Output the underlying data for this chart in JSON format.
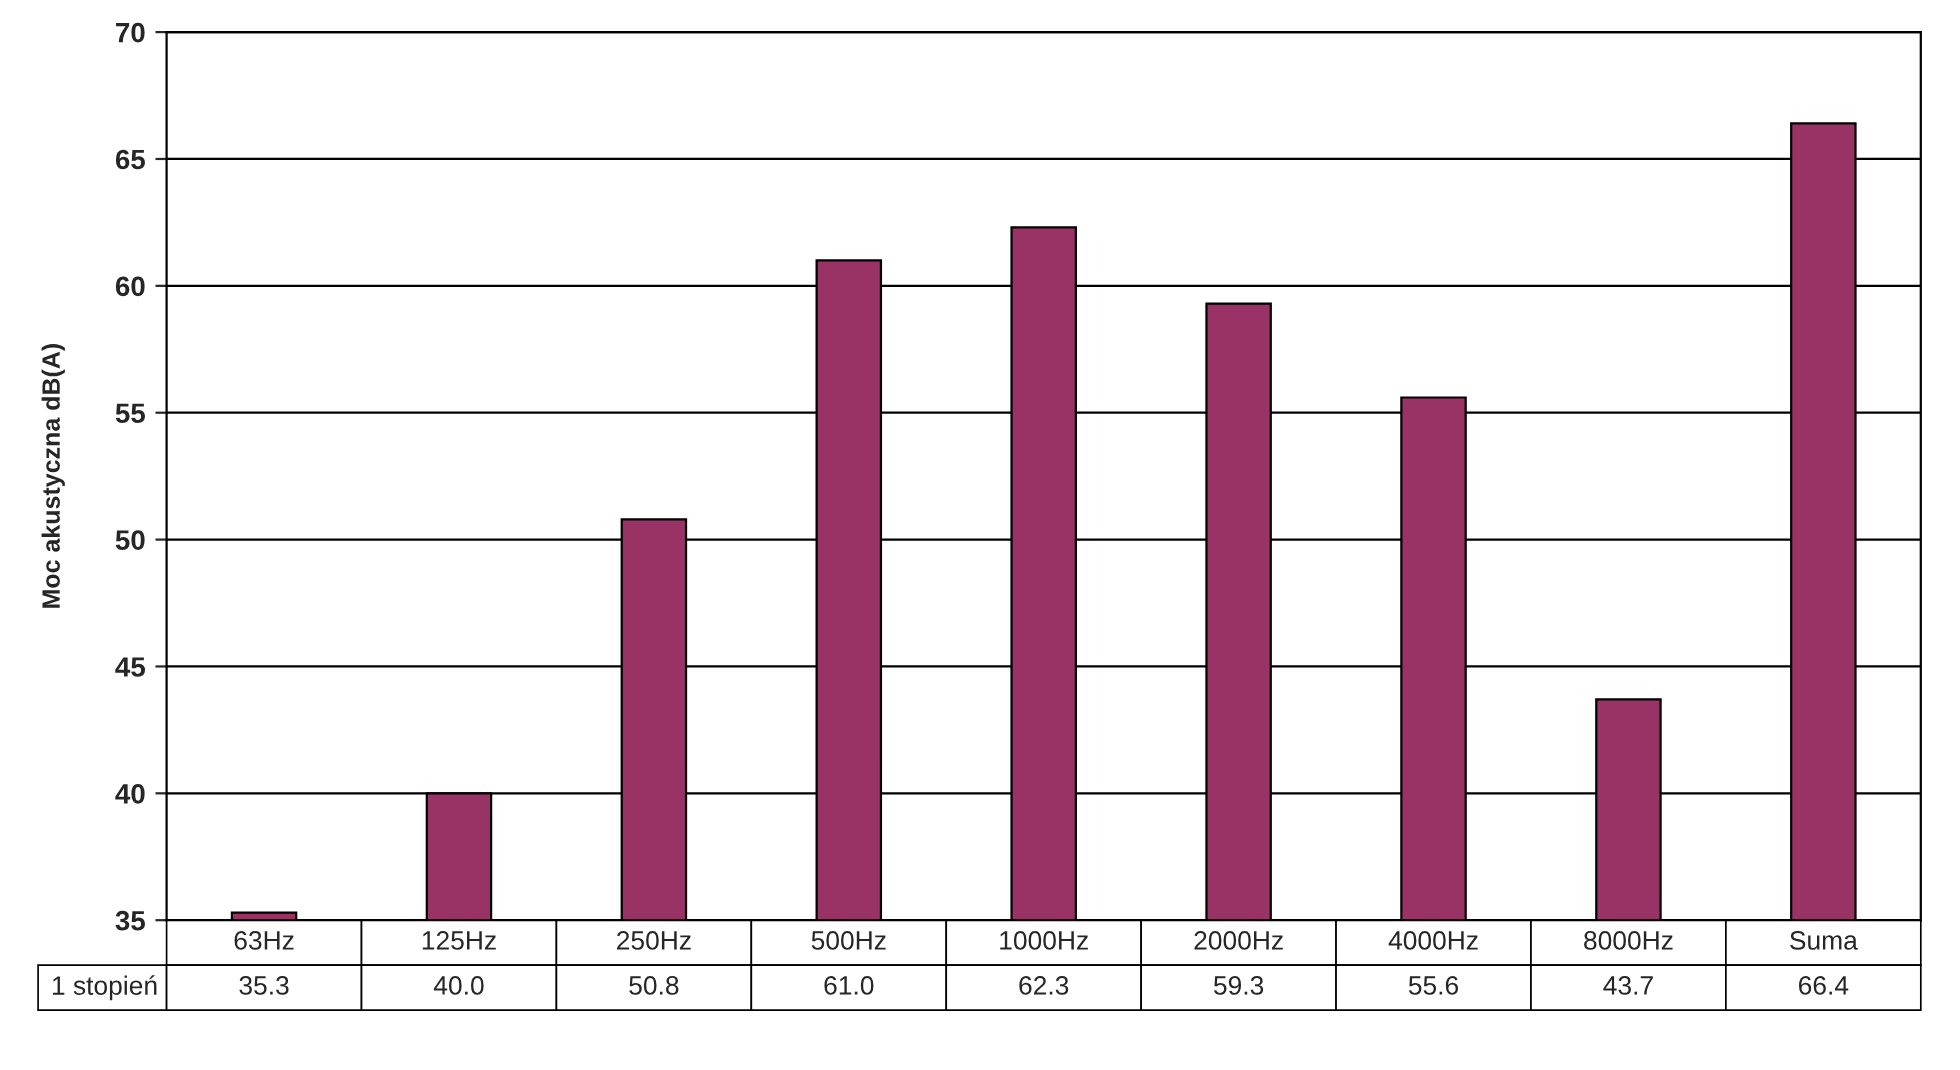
{
  "chart_data": {
    "type": "bar",
    "ylabel": "Moc akustyczna dB(A)",
    "categories": [
      "63Hz",
      "125Hz",
      "250Hz",
      "500Hz",
      "1000Hz",
      "2000Hz",
      "4000Hz",
      "8000Hz",
      "Suma"
    ],
    "series": [
      {
        "name": "1 stopień",
        "color": "#993366",
        "values": [
          35.3,
          40.0,
          50.8,
          61.0,
          62.3,
          59.3,
          55.6,
          43.7,
          66.4
        ],
        "value_labels": [
          "35.3",
          "40.0",
          "50.8",
          "61.0",
          "62.3",
          "59.3",
          "55.6",
          "43.7",
          "66.4"
        ]
      }
    ],
    "ylim": [
      35,
      70
    ],
    "yticks": [
      35,
      40,
      45,
      50,
      55,
      60,
      65,
      70
    ],
    "grid": "y"
  }
}
